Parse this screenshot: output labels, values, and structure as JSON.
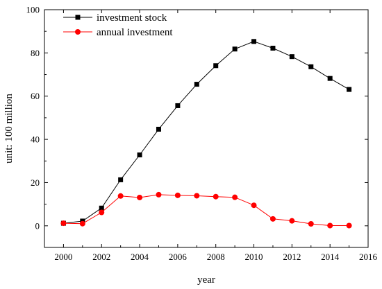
{
  "chart_data": {
    "type": "line",
    "title": "",
    "xlabel": "year",
    "ylabel": "unit: 100 million",
    "xlim": [
      1999,
      2016
    ],
    "ylim": [
      -10,
      100
    ],
    "xticks": [
      2000,
      2002,
      2004,
      2006,
      2008,
      2010,
      2012,
      2014,
      2016
    ],
    "yticks": [
      0,
      20,
      40,
      60,
      80,
      100
    ],
    "grid": false,
    "legend_position": "top-left",
    "x": [
      2000,
      2001,
      2002,
      2003,
      2004,
      2005,
      2006,
      2007,
      2008,
      2009,
      2010,
      2011,
      2012,
      2013,
      2014,
      2015
    ],
    "series": [
      {
        "name": "investment stock",
        "color": "#000000",
        "marker": "square",
        "values": [
          1.2,
          2.2,
          8.2,
          21.3,
          32.8,
          44.7,
          55.6,
          65.5,
          74.1,
          81.8,
          85.3,
          82.2,
          78.3,
          73.6,
          68.2,
          63.1
        ]
      },
      {
        "name": "annual investment",
        "color": "#ff0000",
        "marker": "circle",
        "values": [
          1.2,
          1.0,
          6.2,
          13.8,
          13.1,
          14.4,
          14.1,
          13.9,
          13.5,
          13.2,
          9.5,
          3.2,
          2.3,
          0.9,
          0.1,
          0.1
        ]
      }
    ]
  }
}
